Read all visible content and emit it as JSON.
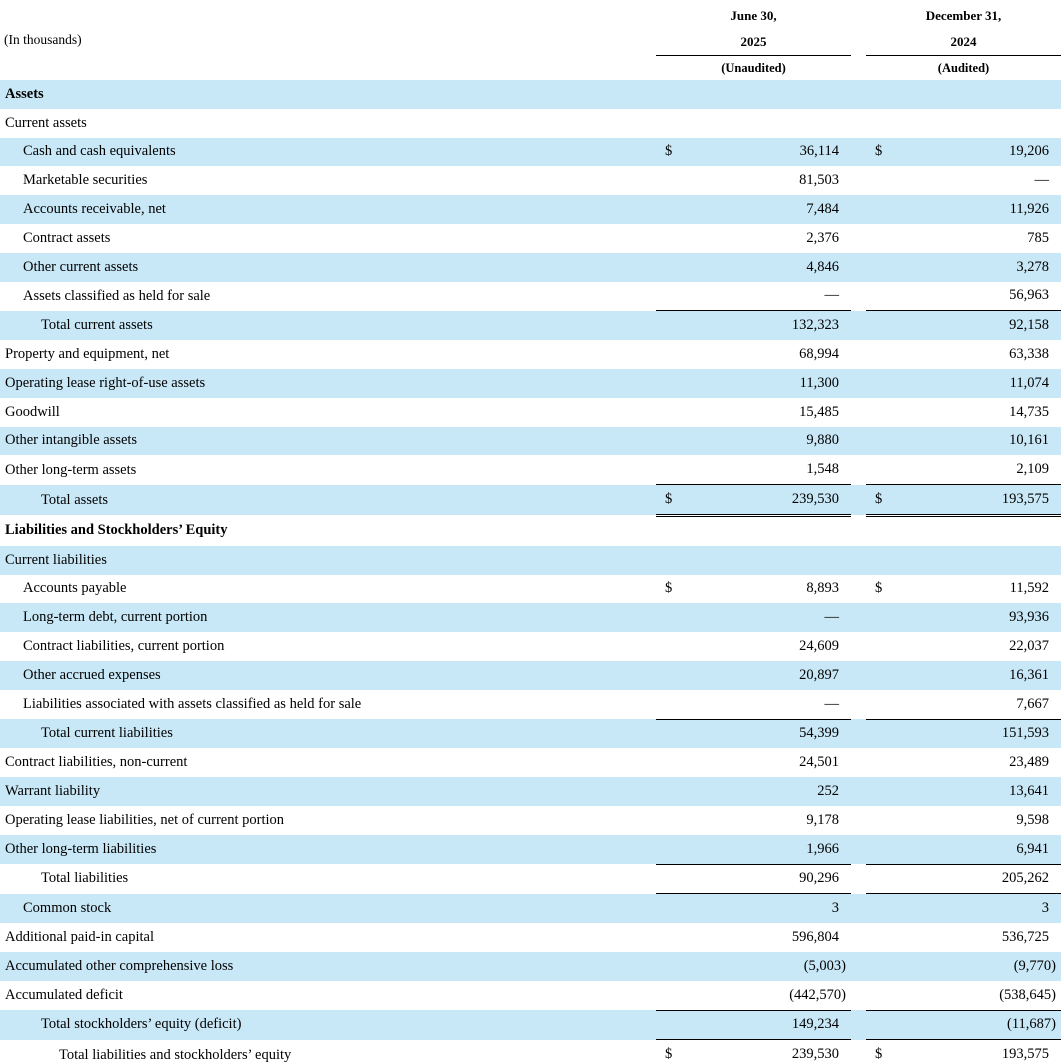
{
  "document": {
    "units_label": "(In thousands)"
  },
  "style": {
    "stripe_color": "#c9e8f7",
    "text_color": "#000000",
    "background_color": "#ffffff"
  },
  "columns": [
    {
      "date_line1": "June 30,",
      "year": "2025",
      "status": "(Unaudited)"
    },
    {
      "date_line1": "December 31,",
      "year": "2024",
      "status": "(Audited)"
    }
  ],
  "rows": [
    {
      "label": "Assets",
      "indent": 0,
      "bold": true,
      "shaded": true,
      "dollar1": "",
      "val1": "",
      "dollar2": "",
      "val2": "",
      "underline": "none"
    },
    {
      "label": "Current assets",
      "indent": 0,
      "bold": false,
      "shaded": false,
      "dollar1": "",
      "val1": "",
      "dollar2": "",
      "val2": "",
      "underline": "none"
    },
    {
      "label": "Cash and cash equivalents",
      "indent": 1,
      "bold": false,
      "shaded": true,
      "dollar1": "$",
      "val1": "36,114",
      "dollar2": "$",
      "val2": "19,206",
      "underline": "none"
    },
    {
      "label": "Marketable securities",
      "indent": 1,
      "bold": false,
      "shaded": false,
      "dollar1": "",
      "val1": "81,503",
      "dollar2": "",
      "val2": "—",
      "underline": "none"
    },
    {
      "label": "Accounts receivable, net",
      "indent": 1,
      "bold": false,
      "shaded": true,
      "dollar1": "",
      "val1": "7,484",
      "dollar2": "",
      "val2": "11,926",
      "underline": "none"
    },
    {
      "label": "Contract assets",
      "indent": 1,
      "bold": false,
      "shaded": false,
      "dollar1": "",
      "val1": "2,376",
      "dollar2": "",
      "val2": "785",
      "underline": "none"
    },
    {
      "label": "Other current assets",
      "indent": 1,
      "bold": false,
      "shaded": true,
      "dollar1": "",
      "val1": "4,846",
      "dollar2": "",
      "val2": "3,278",
      "underline": "none"
    },
    {
      "label": "Assets classified as held for sale",
      "indent": 1,
      "bold": false,
      "shaded": false,
      "dollar1": "",
      "val1": "—",
      "dollar2": "",
      "val2": "56,963",
      "underline": "single"
    },
    {
      "label": "Total current assets",
      "indent": 2,
      "bold": false,
      "shaded": true,
      "dollar1": "",
      "val1": "132,323",
      "dollar2": "",
      "val2": "92,158",
      "underline": "none"
    },
    {
      "label": "Property and equipment, net",
      "indent": 0,
      "bold": false,
      "shaded": false,
      "dollar1": "",
      "val1": "68,994",
      "dollar2": "",
      "val2": "63,338",
      "underline": "none"
    },
    {
      "label": "Operating lease right-of-use assets",
      "indent": 0,
      "bold": false,
      "shaded": true,
      "dollar1": "",
      "val1": "11,300",
      "dollar2": "",
      "val2": "11,074",
      "underline": "none"
    },
    {
      "label": "Goodwill",
      "indent": 0,
      "bold": false,
      "shaded": false,
      "dollar1": "",
      "val1": "15,485",
      "dollar2": "",
      "val2": "14,735",
      "underline": "none"
    },
    {
      "label": "Other intangible assets",
      "indent": 0,
      "bold": false,
      "shaded": true,
      "dollar1": "",
      "val1": "9,880",
      "dollar2": "",
      "val2": "10,161",
      "underline": "none"
    },
    {
      "label": "Other long-term assets",
      "indent": 0,
      "bold": false,
      "shaded": false,
      "dollar1": "",
      "val1": "1,548",
      "dollar2": "",
      "val2": "2,109",
      "underline": "single"
    },
    {
      "label": "Total assets",
      "indent": 2,
      "bold": false,
      "shaded": true,
      "dollar1": "$",
      "val1": "239,530",
      "dollar2": "$",
      "val2": "193,575",
      "underline": "double"
    },
    {
      "label": "Liabilities and Stockholders’ Equity",
      "indent": 0,
      "bold": true,
      "shaded": false,
      "dollar1": "",
      "val1": "",
      "dollar2": "",
      "val2": "",
      "underline": "none"
    },
    {
      "label": "Current liabilities",
      "indent": 0,
      "bold": false,
      "shaded": true,
      "dollar1": "",
      "val1": "",
      "dollar2": "",
      "val2": "",
      "underline": "none"
    },
    {
      "label": "Accounts payable",
      "indent": 1,
      "bold": false,
      "shaded": false,
      "dollar1": "$",
      "val1": "8,893",
      "dollar2": "$",
      "val2": "11,592",
      "underline": "none"
    },
    {
      "label": "Long-term debt, current portion",
      "indent": 1,
      "bold": false,
      "shaded": true,
      "dollar1": "",
      "val1": "—",
      "dollar2": "",
      "val2": "93,936",
      "underline": "none"
    },
    {
      "label": "Contract liabilities, current portion",
      "indent": 1,
      "bold": false,
      "shaded": false,
      "dollar1": "",
      "val1": "24,609",
      "dollar2": "",
      "val2": "22,037",
      "underline": "none"
    },
    {
      "label": "Other accrued expenses",
      "indent": 1,
      "bold": false,
      "shaded": true,
      "dollar1": "",
      "val1": "20,897",
      "dollar2": "",
      "val2": "16,361",
      "underline": "none"
    },
    {
      "label": "Liabilities associated with assets classified as held for sale",
      "indent": 1,
      "bold": false,
      "shaded": false,
      "dollar1": "",
      "val1": "—",
      "dollar2": "",
      "val2": "7,667",
      "underline": "single"
    },
    {
      "label": "Total current liabilities",
      "indent": 2,
      "bold": false,
      "shaded": true,
      "dollar1": "",
      "val1": "54,399",
      "dollar2": "",
      "val2": "151,593",
      "underline": "none"
    },
    {
      "label": "Contract liabilities, non-current",
      "indent": 0,
      "bold": false,
      "shaded": false,
      "dollar1": "",
      "val1": "24,501",
      "dollar2": "",
      "val2": "23,489",
      "underline": "none"
    },
    {
      "label": "Warrant liability",
      "indent": 0,
      "bold": false,
      "shaded": true,
      "dollar1": "",
      "val1": "252",
      "dollar2": "",
      "val2": "13,641",
      "underline": "none"
    },
    {
      "label": "Operating lease liabilities, net of current portion",
      "indent": 0,
      "bold": false,
      "shaded": false,
      "dollar1": "",
      "val1": "9,178",
      "dollar2": "",
      "val2": "9,598",
      "underline": "none"
    },
    {
      "label": "Other long-term liabilities",
      "indent": 0,
      "bold": false,
      "shaded": true,
      "dollar1": "",
      "val1": "1,966",
      "dollar2": "",
      "val2": "6,941",
      "underline": "single"
    },
    {
      "label": "Total liabilities",
      "indent": 2,
      "bold": false,
      "shaded": false,
      "dollar1": "",
      "val1": "90,296",
      "dollar2": "",
      "val2": "205,262",
      "underline": "single"
    },
    {
      "label": "Common stock",
      "indent": 1,
      "bold": false,
      "shaded": true,
      "dollar1": "",
      "val1": "3",
      "dollar2": "",
      "val2": "3",
      "underline": "none"
    },
    {
      "label": "Additional paid-in capital",
      "indent": 0,
      "bold": false,
      "shaded": false,
      "dollar1": "",
      "val1": "596,804",
      "dollar2": "",
      "val2": "536,725",
      "underline": "none"
    },
    {
      "label": "Accumulated other comprehensive loss",
      "indent": 0,
      "bold": false,
      "shaded": true,
      "dollar1": "",
      "val1": "(5,003)",
      "dollar2": "",
      "val2": "(9,770)",
      "underline": "none"
    },
    {
      "label": "Accumulated deficit",
      "indent": 0,
      "bold": false,
      "shaded": false,
      "dollar1": "",
      "val1": "(442,570)",
      "dollar2": "",
      "val2": "(538,645)",
      "underline": "single"
    },
    {
      "label": "Total stockholders’ equity (deficit)",
      "indent": 2,
      "bold": false,
      "shaded": true,
      "dollar1": "",
      "val1": "149,234",
      "dollar2": "",
      "val2": "(11,687)",
      "underline": "single"
    },
    {
      "label": "Total liabilities and stockholders’ equity",
      "indent": 3,
      "bold": false,
      "shaded": false,
      "dollar1": "$",
      "val1": "239,530",
      "dollar2": "$",
      "val2": "193,575",
      "underline": "double"
    }
  ]
}
